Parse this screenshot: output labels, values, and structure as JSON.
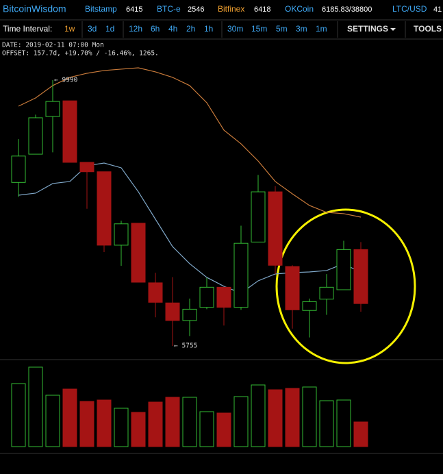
{
  "header": {
    "brand": "BitcoinWisdom",
    "markets": [
      {
        "name": "Bitstamp",
        "price": 6415
      },
      {
        "name": "BTC-e",
        "price": 2546
      },
      {
        "name": "Bitfinex",
        "price": 6418
      },
      {
        "name": "OKCoin",
        "price": "6185.83/38800"
      },
      {
        "name": "LTC/USD",
        "price": 41
      }
    ]
  },
  "toolbar": {
    "label": "Time Interval:",
    "intervals": [
      "1w",
      "3d",
      "1d",
      "12h",
      "6h",
      "4h",
      "2h",
      "1h",
      "30m",
      "15m",
      "5m",
      "3m",
      "1m"
    ],
    "active_interval": 0,
    "settings": "SETTINGS",
    "tools": "TOOLS"
  },
  "info": {
    "date": "DATE: 2019-02-11 07:00 Mon",
    "offset": "OFFSET: 157.7d, +19.70% / -16.46%, 1265."
  },
  "chart_data": {
    "type": "candlestick",
    "up_color": "#33bb33",
    "down_color": "#a51414",
    "high_label": "← 9990",
    "low_label": "← 5755",
    "open": [
      8360,
      8810,
      9410,
      9660,
      8680,
      8530,
      7360,
      7710,
      6760,
      6440,
      6160,
      6370,
      6690,
      6370,
      7410,
      8210,
      7020,
      6320,
      6500,
      6650,
      7290
    ],
    "high": [
      9050,
      9440,
      9990,
      9660,
      8680,
      8530,
      7750,
      7710,
      6920,
      6850,
      6510,
      6840,
      6690,
      7670,
      8480,
      8300,
      7040,
      6510,
      6900,
      7430,
      7410
    ],
    "low": [
      8130,
      8810,
      8840,
      8680,
      7940,
      7250,
      7030,
      6770,
      6210,
      5755,
      5910,
      6340,
      6080,
      6330,
      7410,
      6900,
      6030,
      5890,
      6250,
      6650,
      6300
    ],
    "close": [
      8780,
      9390,
      9650,
      8680,
      8530,
      7360,
      7700,
      6770,
      6450,
      6160,
      6340,
      6690,
      6370,
      7390,
      8210,
      7040,
      6330,
      6460,
      6690,
      7290,
      6430
    ],
    "volume": [
      92,
      116,
      75,
      84,
      66,
      68,
      56,
      50,
      65,
      72,
      72,
      51,
      49,
      73,
      90,
      83,
      85,
      87,
      67,
      68,
      36
    ],
    "moving_averages": [
      {
        "color": "#c87a3a",
        "values": [
          9575,
          9706,
          9903,
          10034,
          10099,
          10143,
          10165,
          10186,
          10121,
          10034,
          9903,
          9630,
          9193,
          8975,
          8702,
          8375,
          8178,
          7993,
          7883,
          7862,
          7807
        ]
      },
      {
        "color": "#7fa7c8",
        "values": [
          8156,
          8189,
          8342,
          8375,
          8626,
          8669,
          8593,
          8211,
          7774,
          7338,
          7065,
          6847,
          6705,
          6596,
          6792,
          6901,
          6923,
          6934,
          6956,
          7065,
          6923
        ]
      }
    ]
  }
}
